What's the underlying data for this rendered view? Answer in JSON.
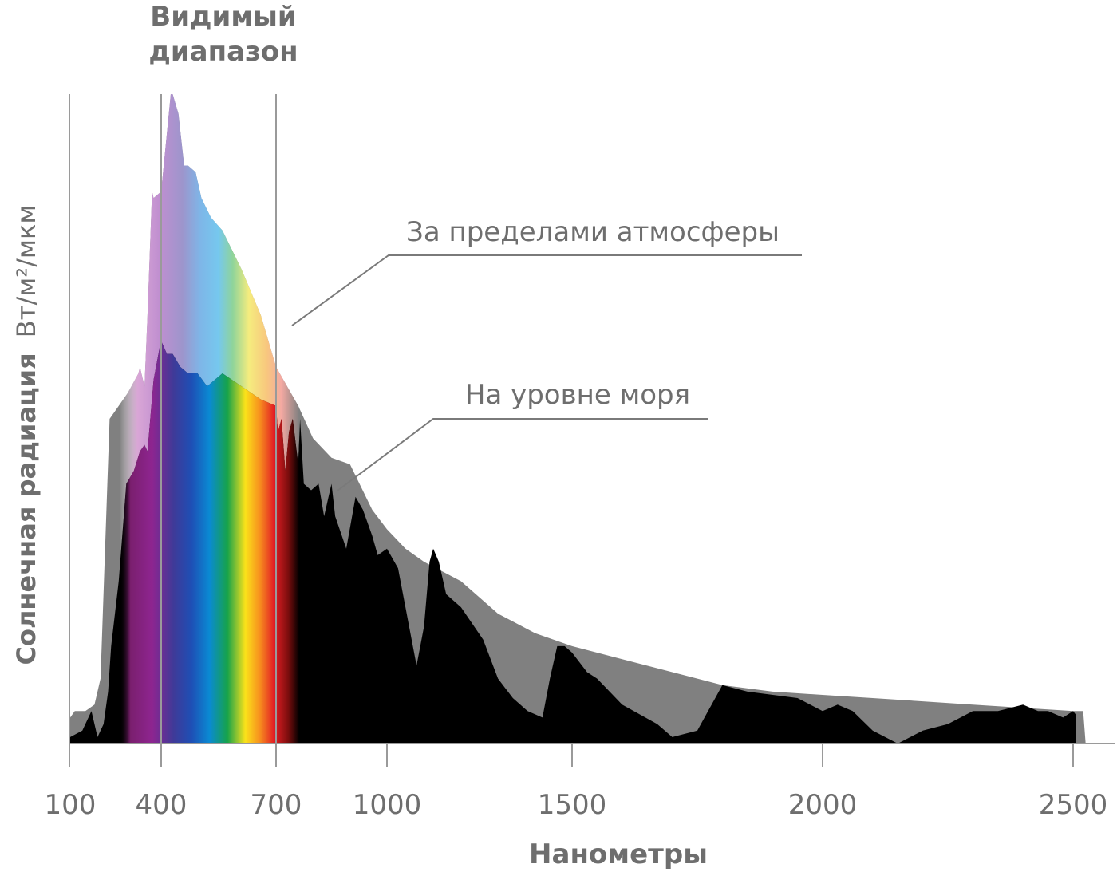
{
  "chart_data": {
    "type": "area",
    "title": "Видимый диапазон",
    "title_lines": [
      "Видимый",
      "диапазон"
    ],
    "xlabel": "Нанометры",
    "ylabel_bold": "Солнечная радиация",
    "ylabel_unit": "Вт/м²/мкм",
    "x_ticks": [
      100,
      400,
      700,
      1000,
      1500,
      2000,
      2500
    ],
    "x_tick_labels": [
      "100",
      "400",
      "700",
      "1000",
      "1500",
      "2000",
      "2500"
    ],
    "visible_range": [
      400,
      700
    ],
    "grid": false,
    "colors": {
      "extraterrestrial": "#808080",
      "sea_level": "#000000",
      "axis": "#9a9a9a",
      "text": "#6e6e6e"
    },
    "annotations": [
      {
        "text": "За пределами атмосферы",
        "series": "extraterrestrial",
        "x": 750
      },
      {
        "text": "На уровне моря",
        "series": "sea_level",
        "x": 880
      }
    ],
    "series": [
      {
        "name": "За пределами атмосферы",
        "x": [
          100,
          115,
          150,
          180,
          200,
          215,
          230,
          260,
          290,
          325,
          330,
          345,
          355,
          370,
          375,
          400,
          425,
          430,
          445,
          460,
          470,
          490,
          505,
          530,
          560,
          610,
          660,
          700,
          760,
          800,
          850,
          900,
          960,
          1000,
          1050,
          1100,
          1200,
          1300,
          1400,
          1500,
          1600,
          1700,
          1800,
          1900,
          2000,
          2100,
          2200,
          2300,
          2400,
          2500,
          2520,
          2525
        ],
        "values": [
          0.04,
          0.05,
          0.05,
          0.06,
          0.1,
          0.3,
          0.5,
          0.52,
          0.54,
          0.57,
          0.58,
          0.55,
          0.66,
          0.85,
          0.84,
          0.85,
          1.0,
          1.0,
          0.97,
          0.89,
          0.89,
          0.88,
          0.84,
          0.81,
          0.79,
          0.73,
          0.66,
          0.58,
          0.52,
          0.47,
          0.44,
          0.43,
          0.36,
          0.33,
          0.3,
          0.28,
          0.25,
          0.2,
          0.17,
          0.15,
          0.13,
          0.11,
          0.09,
          0.08,
          0.075,
          0.07,
          0.065,
          0.06,
          0.055,
          0.05,
          0.05,
          0.0
        ]
      },
      {
        "name": "На уровне моря",
        "x": [
          100,
          140,
          170,
          190,
          210,
          225,
          235,
          260,
          285,
          310,
          330,
          345,
          355,
          375,
          395,
          400,
          415,
          430,
          450,
          470,
          495,
          520,
          560,
          610,
          660,
          700,
          705,
          715,
          725,
          735,
          745,
          760,
          765,
          775,
          795,
          815,
          830,
          850,
          860,
          890,
          915,
          935,
          960,
          975,
          1000,
          1030,
          1080,
          1100,
          1115,
          1125,
          1140,
          1160,
          1200,
          1260,
          1300,
          1340,
          1380,
          1420,
          1440,
          1460,
          1480,
          1500,
          1530,
          1550,
          1600,
          1670,
          1700,
          1750,
          1800,
          1850,
          1950,
          2000,
          2030,
          2060,
          2100,
          2150,
          2200,
          2250,
          2300,
          2350,
          2400,
          2430,
          2450,
          2480,
          2500,
          2505
        ],
        "values": [
          0.01,
          0.02,
          0.05,
          0.01,
          0.03,
          0.08,
          0.15,
          0.25,
          0.4,
          0.42,
          0.45,
          0.46,
          0.45,
          0.56,
          0.61,
          0.62,
          0.6,
          0.6,
          0.58,
          0.57,
          0.57,
          0.55,
          0.57,
          0.55,
          0.53,
          0.52,
          0.48,
          0.5,
          0.42,
          0.48,
          0.5,
          0.43,
          0.5,
          0.4,
          0.39,
          0.4,
          0.35,
          0.4,
          0.35,
          0.3,
          0.38,
          0.36,
          0.32,
          0.29,
          0.3,
          0.27,
          0.12,
          0.18,
          0.28,
          0.3,
          0.28,
          0.23,
          0.21,
          0.16,
          0.1,
          0.07,
          0.05,
          0.04,
          0.1,
          0.15,
          0.15,
          0.14,
          0.11,
          0.1,
          0.06,
          0.03,
          0.01,
          0.02,
          0.09,
          0.08,
          0.07,
          0.05,
          0.06,
          0.05,
          0.02,
          0.0,
          0.02,
          0.03,
          0.05,
          0.05,
          0.06,
          0.05,
          0.05,
          0.04,
          0.05,
          0.045
        ]
      }
    ]
  }
}
